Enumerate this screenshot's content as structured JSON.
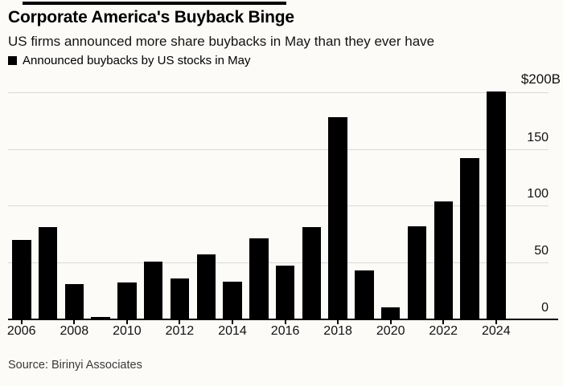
{
  "header": {
    "title": "Corporate America's Buyback Binge",
    "subtitle": "US firms announced more share buybacks in May than they ever have",
    "legend_label": "Announced buybacks by US stocks in May"
  },
  "source_note": "Source: Birinyi Associates",
  "colors": {
    "background": "#fcfbf8",
    "bar": "#000000",
    "gridline": "#d8d8d8",
    "axis_line": "#000000",
    "tick_label": "#111111",
    "source_text": "#3a3a3a",
    "top_rule": "#000000"
  },
  "chart_data": {
    "type": "bar",
    "title": "Corporate America's Buyback Binge",
    "subtitle": "US firms announced more share buybacks in May than they ever have",
    "legend": [
      "Announced buybacks by US stocks in May"
    ],
    "legend_position": "top-left",
    "categories": [
      "2006",
      "2007",
      "2008",
      "2009",
      "2010",
      "2011",
      "2012",
      "2013",
      "2014",
      "2015",
      "2016",
      "2017",
      "2018",
      "2019",
      "2020",
      "2021",
      "2022",
      "2023",
      "2024"
    ],
    "values": [
      70,
      81,
      31,
      2,
      32,
      51,
      36,
      57,
      33,
      71,
      47,
      81,
      178,
      43,
      10,
      82,
      104,
      142,
      201
    ],
    "units": "billions of US dollars",
    "xlabel": "",
    "ylabel": "",
    "ylim": [
      0,
      210
    ],
    "y_axis_side": "right",
    "y_tick_values": [
      0,
      50,
      100,
      150,
      200
    ],
    "y_tick_labels": [
      "0",
      "50",
      "100",
      "150"
    ],
    "y_top_label": "$200B",
    "x_tick_labels": [
      "2006",
      "2008",
      "2010",
      "2012",
      "2014",
      "2016",
      "2018",
      "2020",
      "2022",
      "2024"
    ],
    "grid": "horizontal"
  }
}
